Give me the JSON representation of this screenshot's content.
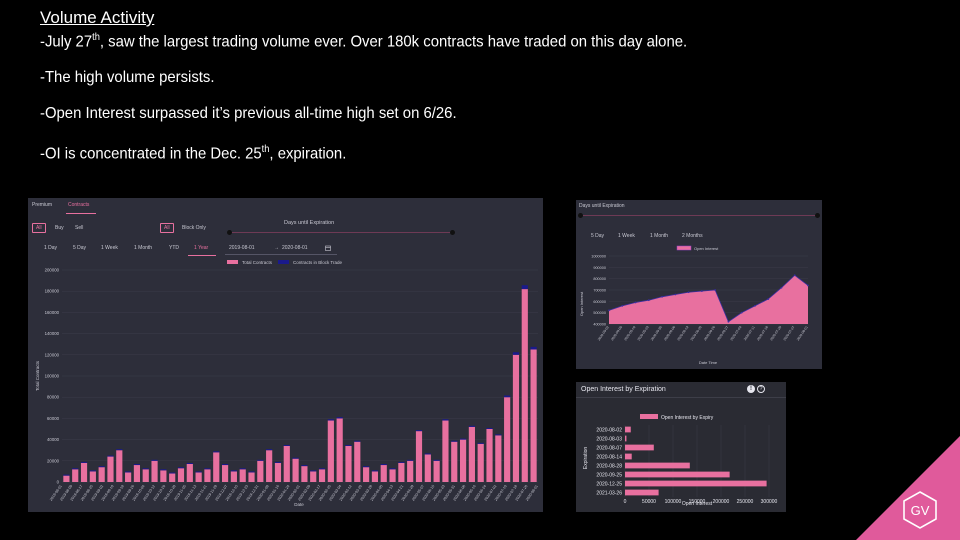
{
  "slide": {
    "title": "Volume Activity",
    "bullets": [
      {
        "pre": "-July 27",
        "sup": "th",
        "post": ", saw the largest trading volume ever. Over 180k contracts have traded on this day alone."
      },
      {
        "pre": "-The high volume persists.",
        "sup": "",
        "post": ""
      },
      {
        "pre": "-Open Interest surpassed it’s previous all-time high set on 6/26.",
        "sup": "",
        "post": ""
      },
      {
        "pre": "-OI is concentrated in the Dec. 25",
        "sup": "th",
        "post": ", expiration."
      }
    ]
  },
  "main_panel": {
    "tabs": [
      "Premium",
      "Contracts"
    ],
    "active_tab": "Contracts",
    "side_filters": [
      "All",
      "Buy",
      "Sell"
    ],
    "trade_filters": [
      "All",
      "Block Only"
    ],
    "days_label": "Days until Expiration",
    "ranges": [
      "1 Day",
      "5 Day",
      "1 Week",
      "1 Month",
      "YTD",
      "1 Year"
    ],
    "active_range": "1 Year",
    "date_from": "2019-08-01",
    "date_to": "2020-08-01",
    "date_sep": "→",
    "legend": [
      "Total Contracts",
      "Contracts in Block Trade"
    ]
  },
  "oi_panel": {
    "days_label": "Days until Expiration",
    "ranges": [
      "5 Day",
      "1 Week",
      "1 Month",
      "2 Months"
    ],
    "legend": "Open Interest"
  },
  "exp_panel": {
    "title": "Open Interest by Expiration",
    "info_icons": [
      "!",
      "?"
    ],
    "legend": "Open Interest by Expiry"
  },
  "colors": {
    "pink": "#e8709f",
    "navy": "#1a1a8c",
    "panel": "#2d2e3a",
    "accent_triangle": "#e05a9b"
  },
  "chart_data": [
    {
      "type": "bar",
      "title": "",
      "xlabel": "Date",
      "ylabel": "Total Contracts",
      "ylim": [
        0,
        200000
      ],
      "yticks": [
        0,
        20000,
        40000,
        60000,
        80000,
        100000,
        120000,
        140000,
        160000,
        180000,
        200000
      ],
      "x": [
        "2019-08-01",
        "2019-08-08",
        "2019-08-15",
        "2019-08-22",
        "2019-08-29",
        "2019-09-05",
        "2019-09-12",
        "2019-09-19",
        "2019-09-26",
        "2019-10-03",
        "2019-10-10",
        "2019-10-17",
        "2019-10-24",
        "2019-10-31",
        "2019-11-07",
        "2019-11-14",
        "2019-11-21",
        "2019-11-28",
        "2019-12-05",
        "2019-12-12",
        "2019-12-19",
        "2019-12-26",
        "2020-01-02",
        "2020-01-09",
        "2020-01-16",
        "2020-01-23",
        "2020-01-30",
        "2020-02-06",
        "2020-02-13",
        "2020-02-20",
        "2020-02-27",
        "2020-03-05",
        "2020-03-12",
        "2020-03-19",
        "2020-03-26",
        "2020-04-02",
        "2020-04-09",
        "2020-04-16",
        "2020-04-23",
        "2020-04-30",
        "2020-05-07",
        "2020-05-14",
        "2020-05-21",
        "2020-05-28",
        "2020-06-04",
        "2020-06-11",
        "2020-06-18",
        "2020-06-25",
        "2020-07-02",
        "2020-07-09",
        "2020-07-16",
        "2020-07-23",
        "2020-07-27",
        "2020-07-30"
      ],
      "xtick_labels": [
        "2019-08-01",
        "2019-08-09",
        "2019-08-17",
        "2019-08-25",
        "2019-09-02",
        "2019-09-10",
        "2019-09-18",
        "2019-09-26",
        "2019-10-04",
        "2019-10-12",
        "2019-10-20",
        "2019-10-28",
        "2019-11-05",
        "2019-11-13",
        "2019-11-21",
        "2019-11-29",
        "2019-12-07",
        "2019-12-15",
        "2019-12-23",
        "2019-12-31",
        "2020-01-08",
        "2020-01-16",
        "2020-01-24",
        "2020-02-01",
        "2020-02-09",
        "2020-02-17",
        "2020-02-25",
        "2020-03-04",
        "2020-03-12",
        "2020-03-20",
        "2020-03-28",
        "2020-04-05",
        "2020-04-13",
        "2020-04-21",
        "2020-04-29",
        "2020-05-07",
        "2020-05-15",
        "2020-05-23",
        "2020-05-31",
        "2020-06-08",
        "2020-06-16",
        "2020-06-24",
        "2020-07-02",
        "2020-07-10",
        "2020-07-18",
        "2020-07-26",
        "2020-08-01"
      ],
      "series": [
        {
          "name": "Total Contracts",
          "values": [
            6000,
            12000,
            18000,
            10000,
            14000,
            24000,
            30000,
            9000,
            16000,
            12000,
            20000,
            11000,
            8000,
            13000,
            17000,
            9000,
            12000,
            28000,
            16000,
            10000,
            12000,
            9000,
            20000,
            30000,
            18000,
            34000,
            22000,
            15000,
            10000,
            12000,
            58000,
            60000,
            34000,
            38000,
            14000,
            10000,
            16000,
            12000,
            18000,
            20000,
            48000,
            26000,
            20000,
            58000,
            38000,
            40000,
            52000,
            36000,
            50000,
            44000,
            80000,
            120000,
            182000,
            125000
          ]
        },
        {
          "name": "Contracts in Block Trade",
          "values": [
            300,
            500,
            800,
            400,
            600,
            1200,
            1500,
            400,
            800,
            600,
            1000,
            500,
            400,
            600,
            800,
            400,
            600,
            1400,
            800,
            500,
            600,
            400,
            1000,
            1500,
            900,
            1700,
            1100,
            800,
            500,
            600,
            2900,
            3000,
            1700,
            1900,
            700,
            500,
            800,
            600,
            900,
            1000,
            2400,
            1300,
            1000,
            2900,
            1900,
            2000,
            2600,
            1800,
            2500,
            2200,
            4000,
            6000,
            9000,
            6200
          ]
        }
      ],
      "legend": "top-center",
      "grid": true
    },
    {
      "type": "area",
      "title": "",
      "xlabel": "Date Time",
      "ylabel": "Open Interest",
      "ylim": [
        400000,
        1000000
      ],
      "yticks": [
        400000,
        500000,
        600000,
        700000,
        800000,
        900000,
        1000000
      ],
      "x": [
        "2020-05-02",
        "2020-05-09",
        "2020-05-16",
        "2020-05-23",
        "2020-05-30",
        "2020-06-06",
        "2020-06-13",
        "2020-06-20",
        "2020-06-26",
        "2020-06-27",
        "2020-07-04",
        "2020-07-11",
        "2020-07-18",
        "2020-07-25",
        "2020-07-27",
        "2020-08-01"
      ],
      "series": [
        {
          "name": "Open Interest",
          "values": [
            520000,
            560000,
            590000,
            610000,
            640000,
            660000,
            680000,
            690000,
            700000,
            420000,
            500000,
            560000,
            620000,
            720000,
            830000,
            740000
          ]
        }
      ],
      "legend": "top-center",
      "grid": true
    },
    {
      "type": "bar",
      "orientation": "horizontal",
      "title": "",
      "xlabel": "Open Interest",
      "ylabel": "Expiration",
      "xlim": [
        0,
        300000
      ],
      "xticks": [
        0,
        50000,
        100000,
        150000,
        200000,
        250000,
        300000
      ],
      "categories": [
        "2020-08-02",
        "2020-08-03",
        "2020-08-07",
        "2020-08-14",
        "2020-08-28",
        "2020-09-25",
        "2020-12-25",
        "2021-03-26"
      ],
      "series": [
        {
          "name": "Open Interest by Expiry",
          "values": [
            12000,
            3000,
            60000,
            14000,
            135000,
            218000,
            295000,
            70000
          ]
        }
      ],
      "legend": "top-center",
      "grid": true
    }
  ]
}
